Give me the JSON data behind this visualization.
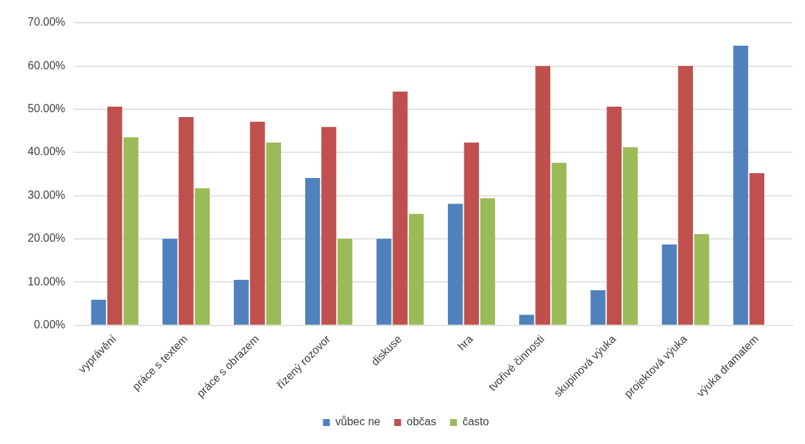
{
  "chart_data": {
    "type": "bar",
    "categories": [
      "vyprávění",
      "práce s textem",
      "práce s obrazem",
      "řízený rozovor",
      "diskuse",
      "hra",
      "tvořivé činnosti",
      "skupinová výuka",
      "projektová výuka",
      "výuka dramatem"
    ],
    "series": [
      {
        "name": "vůbec ne",
        "color": "#4f81bd",
        "values": [
          5.9,
          20.0,
          10.5,
          34.1,
          20.0,
          28.1,
          2.4,
          8.1,
          18.7,
          64.7
        ]
      },
      {
        "name": "občas",
        "color": "#c0504d",
        "values": [
          50.6,
          48.2,
          47.1,
          45.9,
          54.1,
          42.3,
          60.0,
          50.6,
          60.0,
          35.2
        ]
      },
      {
        "name": "často",
        "color": "#9bbb59",
        "values": [
          43.5,
          31.7,
          42.3,
          20.0,
          25.8,
          29.4,
          37.6,
          41.2,
          21.1,
          0
        ]
      }
    ],
    "ylim": [
      0,
      70
    ],
    "yticks": [
      {
        "value": 0,
        "label": "0.00%"
      },
      {
        "value": 10,
        "label": "10.00%"
      },
      {
        "value": 20,
        "label": "20.00%"
      },
      {
        "value": 30,
        "label": "30.00%"
      },
      {
        "value": 40,
        "label": "40.00%"
      },
      {
        "value": 50,
        "label": "50.00%"
      },
      {
        "value": 60,
        "label": "60.00%"
      },
      {
        "value": 70,
        "label": "70.00%"
      }
    ],
    "grid": "y",
    "legend": "bottom"
  }
}
